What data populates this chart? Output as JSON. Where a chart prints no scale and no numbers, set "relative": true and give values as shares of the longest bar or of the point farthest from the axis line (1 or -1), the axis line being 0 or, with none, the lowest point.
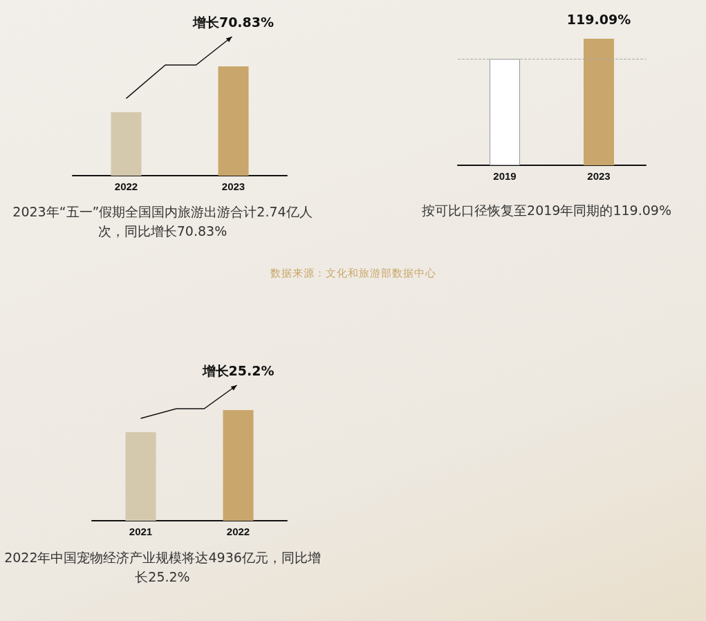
{
  "chart_data": [
    {
      "type": "bar",
      "relative": true,
      "categories": [
        "2022",
        "2023"
      ],
      "values": [
        0.58,
        1
      ],
      "colors": [
        "#d4c9ad",
        "#c9a66b"
      ],
      "annotations": [
        {
          "text": "增长70.83%",
          "x": "2023",
          "y": 1
        },
        "2023年“五一”假期全国国内旅游出游合计2.74亿人次，同比增长70.83%",
        "数据来源：文化和旅游部数据中心"
      ]
    },
    {
      "type": "bar",
      "relative": true,
      "categories": [
        "2019",
        "2023"
      ],
      "values": [
        0.84,
        1
      ],
      "colors": [
        "#ffffff",
        "#c9a66b"
      ],
      "ref_lines": [
        {
          "axis": "y",
          "value": 0.84,
          "line_style": "dashed",
          "color": "#aaaaaa"
        }
      ],
      "annotations": [
        {
          "text": "119.09%",
          "x": "2023",
          "y": 1
        },
        "按可比口径恢复至2019年同期的119.09%"
      ]
    },
    {
      "type": "bar",
      "relative": true,
      "categories": [
        "2021",
        "2022"
      ],
      "values": [
        0.8,
        1
      ],
      "colors": [
        "#d4c9ad",
        "#c9a66b"
      ],
      "annotations": [
        {
          "text": "增长25.2%",
          "x": "2022",
          "y": 1
        },
        "2022年中国宠物经济产业规模将达4936亿元，同比增长25.2%"
      ]
    }
  ]
}
